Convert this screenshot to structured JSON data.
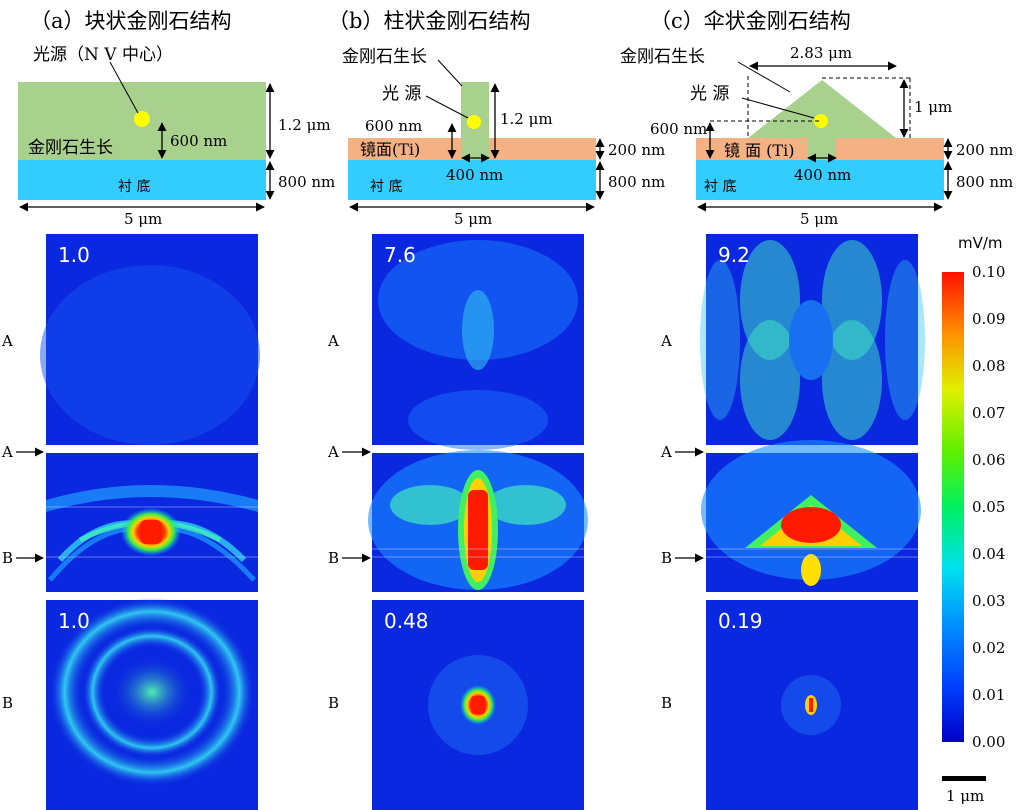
{
  "titles": {
    "a": "（a）块状金刚石结构",
    "b": "（b）柱状金刚石结构",
    "c": "（c）伞状金刚石结构"
  },
  "labels": {
    "light_source_nv": "光源（N V 中心）",
    "light_source": "光 源",
    "diamond_growth": "金刚石生长",
    "diamond_growth_a": "金刚石生长",
    "substrate": "衬    底",
    "mirror": "镜面(Ti)",
    "mirror_c": "镜 面 (Ti)"
  },
  "dimensions": {
    "d_1_2um": "1.2 μm",
    "d_800nm": "800 nm",
    "d_600nm": "600 nm",
    "d_5um": "5 μm",
    "d_200nm": "200 nm",
    "d_400nm": "400 nm",
    "d_2_83um": "2.83 μm",
    "d_1um": "1 μm"
  },
  "rows": {
    "A": "A",
    "B": "B"
  },
  "panel_values": {
    "a_top": "1.0",
    "b_top": "7.6",
    "c_top": "9.2",
    "a_bottom": "1.0",
    "b_bottom": "0.48",
    "c_bottom": "0.19"
  },
  "colorbar": {
    "unit": "mV/m",
    "ticks": [
      "0.10",
      "0.09",
      "0.08",
      "0.07",
      "0.06",
      "0.05",
      "0.04",
      "0.03",
      "0.02",
      "0.01",
      "0.00"
    ]
  },
  "scalebar": {
    "label": "1 μm"
  },
  "colors": {
    "diamond": "#a9d18e",
    "substrate": "#33ccff",
    "mirror": "#f4b183",
    "nv": "#ffff00",
    "field_low": "#0a14d8",
    "field_high": "#ff1a00"
  }
}
